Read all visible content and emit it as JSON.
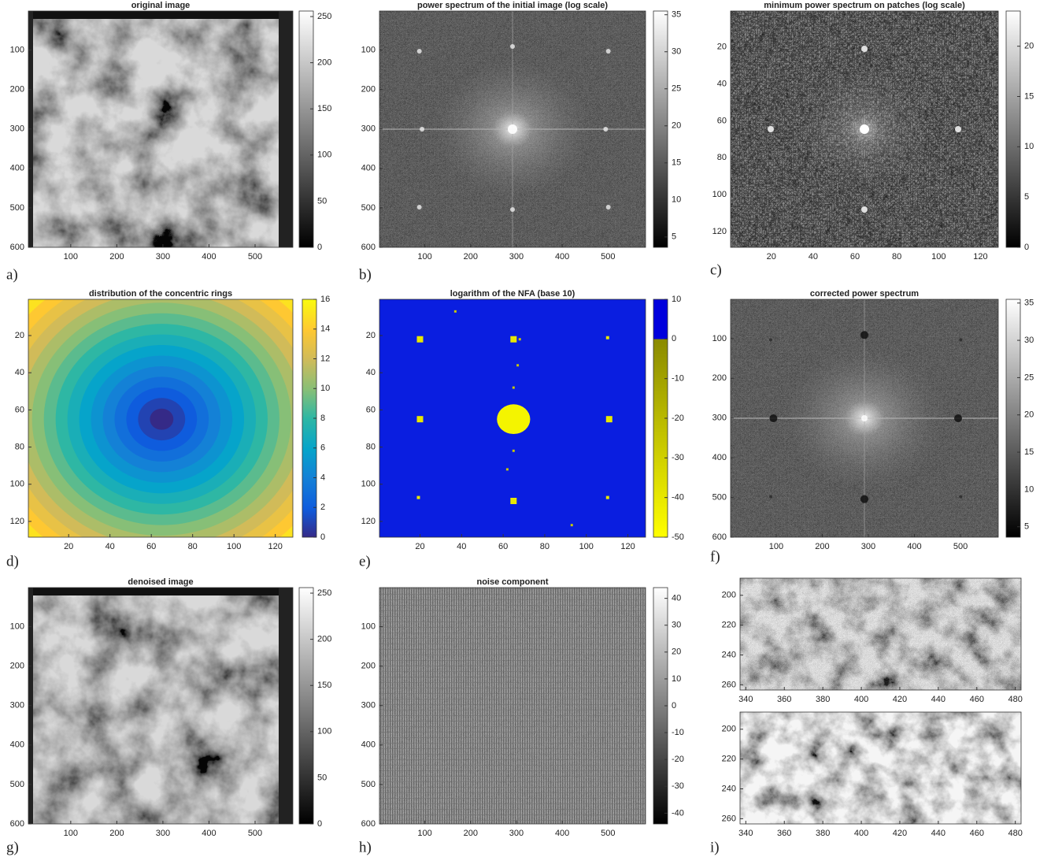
{
  "chart_data": [
    {
      "type": "image",
      "title": "original image",
      "panel_label": "a)",
      "xlim": [
        8,
        582
      ],
      "ylim": [
        1,
        600
      ],
      "y_reversed": true,
      "xticks": [
        100,
        200,
        300,
        400,
        500
      ],
      "yticks": [
        100,
        200,
        300,
        400,
        500,
        600
      ],
      "colorbar": {
        "clim": [
          0,
          256
        ],
        "ticks": [
          0,
          50,
          100,
          150,
          200,
          250
        ],
        "colormap": "gray"
      }
    },
    {
      "type": "image",
      "title": "power spectrum of the initial image (log scale)",
      "panel_label": "b)",
      "xlim": [
        1,
        582
      ],
      "ylim": [
        1,
        600
      ],
      "y_reversed": true,
      "xticks": [
        100,
        200,
        300,
        400,
        500
      ],
      "yticks": [
        100,
        200,
        300,
        400,
        500,
        600
      ],
      "colorbar": {
        "clim": [
          3.6,
          35.5
        ],
        "ticks": [
          5,
          10,
          15,
          20,
          25,
          30,
          35
        ],
        "colormap": "gray"
      }
    },
    {
      "type": "image",
      "title": "minimum power spectrum on patches (log scale)",
      "panel_label": "c)",
      "xlim": [
        0.5,
        128.5
      ],
      "ylim": [
        0.5,
        128.5
      ],
      "y_reversed": true,
      "xticks": [
        20,
        40,
        60,
        80,
        100,
        120
      ],
      "yticks": [
        20,
        40,
        60,
        80,
        100,
        120
      ],
      "colorbar": {
        "clim": [
          0,
          23.5
        ],
        "ticks": [
          0,
          5,
          10,
          15,
          20
        ],
        "colormap": "gray"
      }
    },
    {
      "type": "image",
      "title": "distribution of the concentric rings",
      "panel_label": "d)",
      "xlim": [
        0.5,
        128.5
      ],
      "ylim": [
        0.5,
        128.5
      ],
      "y_reversed": true,
      "xticks": [
        20,
        40,
        60,
        80,
        100,
        120
      ],
      "yticks": [
        20,
        40,
        60,
        80,
        100,
        120
      ],
      "colorbar": {
        "clim": [
          0,
          16
        ],
        "ticks": [
          0,
          2,
          4,
          6,
          8,
          10,
          12,
          14,
          16
        ],
        "colormap": "parula"
      }
    },
    {
      "type": "image",
      "title": "logarithm of the NFA (base 10)",
      "panel_label": "e)",
      "xlim": [
        0.5,
        128.5
      ],
      "ylim": [
        0.5,
        128.5
      ],
      "y_reversed": true,
      "xticks": [
        20,
        40,
        60,
        80,
        100,
        120
      ],
      "yticks": [
        20,
        40,
        60,
        80,
        100,
        120
      ],
      "colorbar": {
        "clim": [
          -50,
          10
        ],
        "ticks": [
          10,
          0,
          -10,
          -20,
          -30,
          -40,
          -50
        ],
        "colormap": "nfa"
      }
    },
    {
      "type": "image",
      "title": "corrected power spectrum",
      "panel_label": "f)",
      "xlim": [
        1,
        582
      ],
      "ylim": [
        1,
        600
      ],
      "y_reversed": true,
      "xticks": [
        100,
        200,
        300,
        400,
        500
      ],
      "yticks": [
        100,
        200,
        300,
        400,
        500,
        600
      ],
      "colorbar": {
        "clim": [
          3.6,
          35.5
        ],
        "ticks": [
          5,
          10,
          15,
          20,
          25,
          30,
          35
        ],
        "colormap": "gray"
      }
    },
    {
      "type": "image",
      "title": "denoised image",
      "panel_label": "g)",
      "xlim": [
        8,
        582
      ],
      "ylim": [
        1,
        600
      ],
      "y_reversed": true,
      "xticks": [
        100,
        200,
        300,
        400,
        500
      ],
      "yticks": [
        100,
        200,
        300,
        400,
        500,
        600
      ],
      "colorbar": {
        "clim": [
          0,
          256
        ],
        "ticks": [
          0,
          50,
          100,
          150,
          200,
          250
        ],
        "colormap": "gray"
      }
    },
    {
      "type": "image",
      "title": "noise component",
      "panel_label": "h)",
      "xlim": [
        1,
        582
      ],
      "ylim": [
        1,
        600
      ],
      "y_reversed": true,
      "xticks": [
        100,
        200,
        300,
        400,
        500
      ],
      "yticks": [
        100,
        200,
        300,
        400,
        500,
        600
      ],
      "colorbar": {
        "clim": [
          -44,
          44
        ],
        "ticks": [
          40,
          30,
          20,
          10,
          0,
          -10,
          -20,
          -30,
          -40
        ],
        "colormap": "gray"
      }
    },
    {
      "type": "image",
      "xlim": [
        337,
        483
      ],
      "ylim": [
        188.5,
        263.5
      ],
      "y_reversed": true,
      "xticks": [
        340,
        360,
        380,
        400,
        420,
        440,
        460,
        480
      ],
      "yticks": [
        200,
        220,
        240,
        260
      ]
    },
    {
      "type": "image",
      "panel_label": "i)",
      "xlim": [
        337,
        483
      ],
      "ylim": [
        188.5,
        263.5
      ],
      "y_reversed": true,
      "xticks": [
        340,
        360,
        380,
        400,
        420,
        440,
        460,
        480
      ],
      "yticks": [
        200,
        220,
        240,
        260
      ]
    }
  ]
}
